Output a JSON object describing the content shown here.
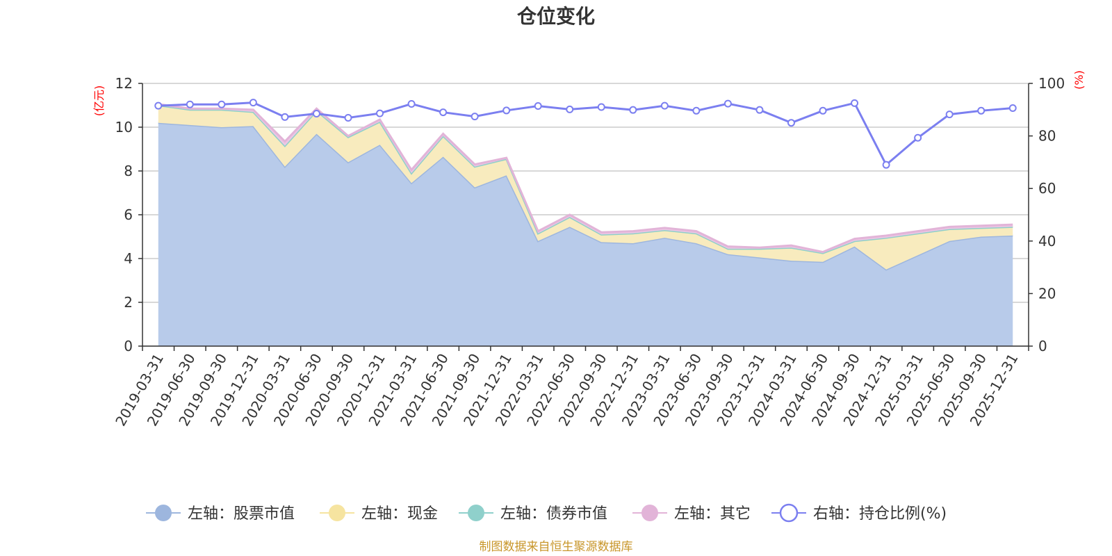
{
  "title": "仓位变化",
  "source": "制图数据来自恒生聚源数据库",
  "left_unit": "(亿元)",
  "right_unit": "(%)",
  "chart_data": {
    "type": "area",
    "title": "仓位变化",
    "categories": [
      "2019-03-31",
      "2019-06-30",
      "2019-09-30",
      "2019-12-31",
      "2020-03-31",
      "2020-06-30",
      "2020-09-30",
      "2020-12-31",
      "2021-03-31",
      "2021-06-30",
      "2021-09-30",
      "2021-12-31",
      "2022-03-31",
      "2022-06-30",
      "2022-09-30",
      "2022-12-31",
      "2023-03-31",
      "2023-06-30",
      "2023-09-30",
      "2023-12-31",
      "2024-03-31",
      "2024-06-30",
      "2024-09-30",
      "2024-12-31",
      "2025-03-31",
      "2025-06-30",
      "2025-09-30",
      "2025-12-31"
    ],
    "left_axis": {
      "label": "(亿元)",
      "ylim": [
        0,
        12
      ],
      "ticks": [
        "0",
        "2",
        "4",
        "6",
        "8",
        "10",
        "12"
      ]
    },
    "right_axis": {
      "label": "(%)",
      "ylim": [
        0,
        100
      ],
      "ticks": [
        "0",
        "20",
        "40",
        "60",
        "80",
        "100"
      ]
    },
    "series": [
      {
        "name": "左轴：股票市值",
        "axis": "left",
        "stack": true,
        "color": "#9db6de",
        "fill": "#b8cbea",
        "values": [
          10.2,
          10.1,
          10.0,
          10.05,
          8.2,
          9.7,
          8.4,
          9.2,
          7.45,
          8.65,
          7.25,
          7.8,
          4.8,
          5.45,
          4.75,
          4.7,
          4.95,
          4.7,
          4.2,
          4.05,
          3.9,
          3.85,
          4.55,
          3.5,
          4.15,
          4.8,
          5.0,
          5.05
        ]
      },
      {
        "name": "左轴：现金",
        "axis": "left",
        "stack": true,
        "color": "#f6e4a0",
        "fill": "#f8ebbe",
        "values": [
          0.8,
          0.7,
          0.8,
          0.65,
          0.95,
          1.05,
          1.15,
          1.05,
          0.45,
          0.95,
          0.95,
          0.75,
          0.35,
          0.45,
          0.35,
          0.45,
          0.35,
          0.45,
          0.25,
          0.4,
          0.6,
          0.4,
          0.25,
          1.45,
          1.0,
          0.55,
          0.4,
          0.4
        ]
      },
      {
        "name": "左轴：债券市值",
        "axis": "left",
        "stack": true,
        "color": "#8fd0cb",
        "fill": "#b5e0dc",
        "values": [
          0,
          0,
          0,
          0,
          0,
          0,
          0,
          0,
          0,
          0,
          0,
          0,
          0,
          0,
          0,
          0,
          0,
          0,
          0,
          0,
          0,
          0,
          0,
          0,
          0,
          0,
          0,
          0
        ]
      },
      {
        "name": "左轴：其它",
        "axis": "left",
        "stack": true,
        "color": "#e2b4d8",
        "fill": "#ecc6e4",
        "values": [
          0.05,
          0.05,
          0.05,
          0.1,
          0.2,
          0.1,
          0.05,
          0.1,
          0.15,
          0.1,
          0.1,
          0.05,
          0.1,
          0.1,
          0.1,
          0.1,
          0.1,
          0.1,
          0.1,
          0.05,
          0.1,
          0.05,
          0.1,
          0.1,
          0.1,
          0.1,
          0.1,
          0.1
        ]
      },
      {
        "name": "右轴：持仓比例(%)",
        "axis": "right",
        "type": "line",
        "color": "#7b7ff0",
        "values": [
          91.5,
          92.0,
          92.0,
          92.7,
          87.2,
          88.5,
          86.9,
          88.6,
          92.2,
          89.0,
          87.4,
          89.7,
          91.4,
          90.1,
          91.0,
          89.9,
          91.5,
          89.6,
          92.3,
          89.9,
          85.0,
          89.6,
          92.5,
          69.0,
          79.3,
          88.2,
          89.6,
          90.6
        ]
      }
    ]
  }
}
